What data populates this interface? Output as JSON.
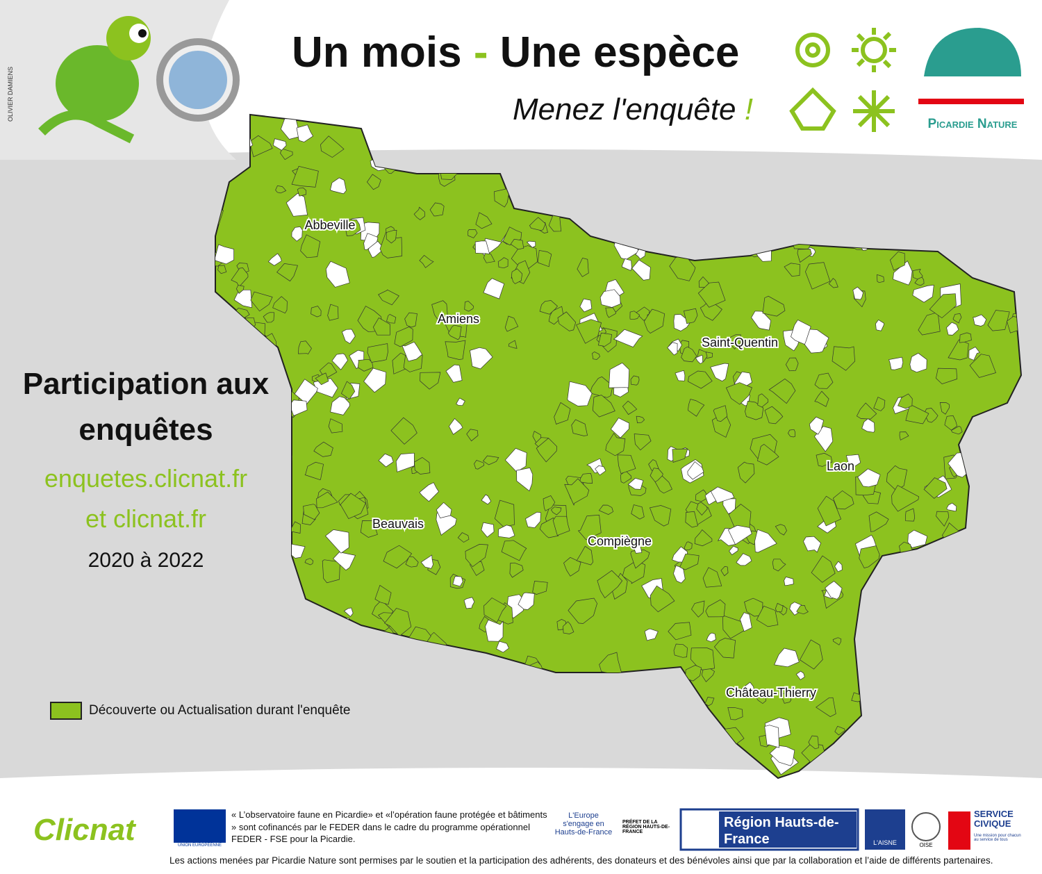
{
  "header": {
    "title_part1": "Un mois",
    "title_dash": "-",
    "title_part2": "Une espèce",
    "subtitle": "Menez l'enquête",
    "subtitle_mark": "!",
    "credit": "OLIVIER DAMIENS",
    "logo": "Picardie Nature"
  },
  "map": {
    "cities": [
      "Abbeville",
      "Amiens",
      "Saint-Quentin",
      "Laon",
      "Beauvais",
      "Compiègne",
      "Château-Thierry"
    ],
    "legend": "Découverte ou Actualisation durant l'enquête"
  },
  "sidebar": {
    "title": "Participation aux enquêtes",
    "links": [
      "enquetes.clicnat.fr",
      "et clicnat.fr"
    ],
    "period": "2020 à 2022"
  },
  "footer": {
    "clicnat": "Clicnat",
    "eu": "UNION EUROPÉENNE",
    "funding": "« L’observatoire faune en Picardie» et «l’opération faune protégée et bâtiments » sont cofinancés par le FEDER dans le cadre du programme opérationnel FEDER - FSE pour la Picardie.",
    "europe": "L'Europe s'engage en Hauts-de-France",
    "prefet": "PRÉFET DE LA RÉGION HAUTS-DE-FRANCE",
    "region": "Région Hauts-de-France",
    "aisne": "L'AISNE",
    "oise": "OISE",
    "civique": "SERVICE CIVIQUE",
    "civique_tagline": "Une mission pour chacun au service de tous",
    "thanks": "Les actions menées par Picardie Nature sont permises par le soutien et la participation des adhérents, des donateurs et des bénévoles ainsi que par la collaboration et l’aide de différents partenaires."
  }
}
